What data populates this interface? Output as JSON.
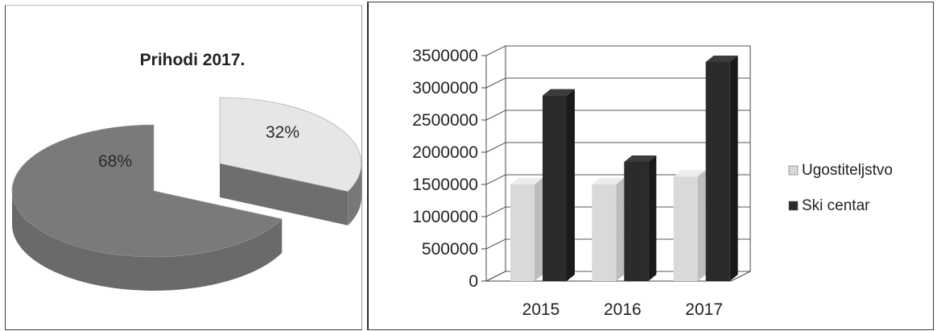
{
  "chart_data": [
    {
      "type": "pie",
      "title": "Prihodi  2017.",
      "slices": [
        {
          "label": "68%",
          "value": 68,
          "color": "#7a7a7a",
          "side_color": "#6a6a6a"
        },
        {
          "label": "32%",
          "value": 32,
          "color": "#e6e6e6",
          "side_color": "#787878"
        }
      ],
      "exploded": true,
      "style": "3d"
    },
    {
      "type": "bar",
      "style": "3d",
      "categories": [
        "2015",
        "2016",
        "2017"
      ],
      "series": [
        {
          "name": "Ugostiteljstvo",
          "color": "#d9d9d9",
          "values": [
            1500000,
            1500000,
            1620000
          ]
        },
        {
          "name": "Ski centar",
          "color": "#2b2b2b",
          "values": [
            2880000,
            1850000,
            3400000
          ]
        }
      ],
      "yticks": [
        "0",
        "500000",
        "1000000",
        "1500000",
        "2000000",
        "2500000",
        "3000000",
        "3500000"
      ],
      "ylim": [
        0,
        3500000
      ],
      "grid": true,
      "legend_position": "right"
    }
  ]
}
